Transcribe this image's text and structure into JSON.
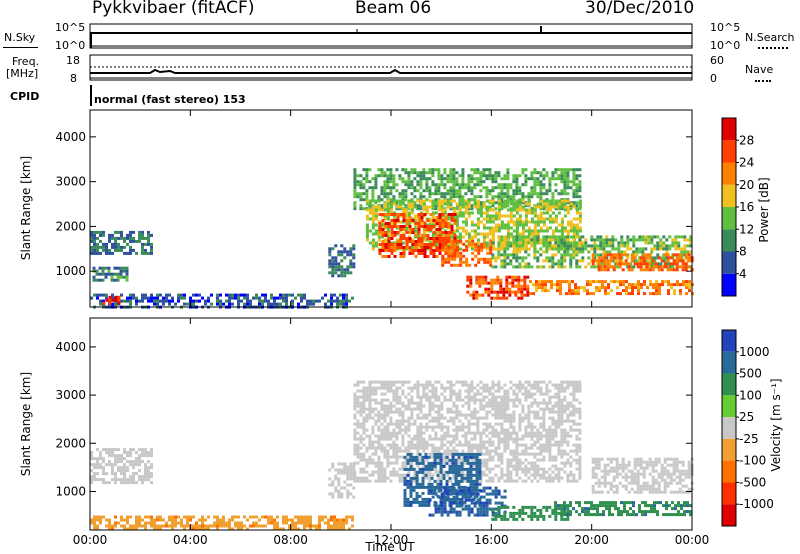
{
  "header": {
    "station": "Pykkvibaer (fitACF)",
    "beam": "Beam 06",
    "date": "30/Dec/2010"
  },
  "nsky_panel": {
    "left_label": "N.Sky",
    "left_ticks": [
      "10^5",
      "10^0"
    ],
    "right_ticks": [
      "10^5",
      "10^0"
    ],
    "right_label": "N.Search"
  },
  "freq_panel": {
    "left_label_1": "Freq.",
    "left_label_2": "[MHz]",
    "left_ticks": [
      "18",
      "8"
    ],
    "right_ticks": [
      "60",
      "0"
    ],
    "right_label": "Nave"
  },
  "cpid": {
    "label": "CPID",
    "value": "normal (fast stereo) 153"
  },
  "colors": {
    "power": [
      "#0000ff",
      "#2f4f9f",
      "#3a8a5a",
      "#5fbf3f",
      "#f0c020",
      "#ff8000",
      "#ff4000",
      "#e00000"
    ],
    "velocity": [
      "#2244bb",
      "#2a6a9a",
      "#2f8f4f",
      "#66cc33",
      "#c8c8c8",
      "#f0a030",
      "#ff7000",
      "#ff3000",
      "#e00000"
    ]
  },
  "chart_data": [
    {
      "type": "heatmap",
      "panel": "power",
      "xlabel": "",
      "ylabel": "Slant Range [km]",
      "x_ticks": [
        "00:00",
        "04:00",
        "08:00",
        "12:00",
        "16:00",
        "20:00",
        "00:00"
      ],
      "xlim_hours": [
        0,
        24
      ],
      "y_ticks": [
        1000,
        2000,
        3000,
        4000
      ],
      "ylim": [
        200,
        4600
      ],
      "colorbar": {
        "label": "Power [dB]",
        "ticks": [
          4,
          8,
          12,
          16,
          20,
          24,
          28
        ],
        "range": [
          0,
          32
        ]
      },
      "regions": [
        {
          "x": [
            0.0,
            10.5
          ],
          "y": [
            200,
            500
          ],
          "value": 6
        },
        {
          "x": [
            0.0,
            2.5
          ],
          "y": [
            1400,
            1900
          ],
          "value": 8
        },
        {
          "x": [
            0.1,
            1.5
          ],
          "y": [
            800,
            1100
          ],
          "value": 9
        },
        {
          "x": [
            0.5,
            1.1
          ],
          "y": [
            300,
            450
          ],
          "value": 28
        },
        {
          "x": [
            9.5,
            10.5
          ],
          "y": [
            900,
            1600
          ],
          "value": 8
        },
        {
          "x": [
            10.5,
            19.5
          ],
          "y": [
            2400,
            3300
          ],
          "value": 12
        },
        {
          "x": [
            11.0,
            19.5
          ],
          "y": [
            1500,
            2600
          ],
          "value": 16
        },
        {
          "x": [
            11.5,
            14.5
          ],
          "y": [
            1300,
            2300
          ],
          "value": 26
        },
        {
          "x": [
            14.0,
            16.0
          ],
          "y": [
            1100,
            1700
          ],
          "value": 24
        },
        {
          "x": [
            15.0,
            17.5
          ],
          "y": [
            400,
            900
          ],
          "value": 26
        },
        {
          "x": [
            16.0,
            24.0
          ],
          "y": [
            1100,
            1800
          ],
          "value": 14
        },
        {
          "x": [
            17.5,
            24.0
          ],
          "y": [
            500,
            800
          ],
          "value": 22
        },
        {
          "x": [
            20.0,
            24.0
          ],
          "y": [
            1000,
            1400
          ],
          "value": 24
        }
      ]
    },
    {
      "type": "heatmap",
      "panel": "velocity",
      "xlabel": "Time UT",
      "ylabel": "Slant Range [km]",
      "x_ticks": [
        "00:00",
        "04:00",
        "08:00",
        "12:00",
        "16:00",
        "20:00",
        "00:00"
      ],
      "xlim_hours": [
        0,
        24
      ],
      "y_ticks": [
        1000,
        2000,
        3000,
        4000
      ],
      "ylim": [
        200,
        4600
      ],
      "colorbar": {
        "label": "Velocity [m s⁻¹]",
        "ticks": [
          "1000",
          "500",
          "100",
          "25",
          "-25",
          "-100",
          "-500",
          "-1000"
        ]
      },
      "regions": [
        {
          "x": [
            0.0,
            2.5
          ],
          "y": [
            1200,
            1900
          ],
          "value": 0
        },
        {
          "x": [
            0.0,
            10.5
          ],
          "y": [
            200,
            500
          ],
          "value": -80
        },
        {
          "x": [
            9.5,
            10.5
          ],
          "y": [
            900,
            1600
          ],
          "value": 0
        },
        {
          "x": [
            10.5,
            19.5
          ],
          "y": [
            1200,
            3300
          ],
          "value": 0
        },
        {
          "x": [
            12.5,
            15.5
          ],
          "y": [
            700,
            1800
          ],
          "value": 600
        },
        {
          "x": [
            13.5,
            16.5
          ],
          "y": [
            500,
            1100
          ],
          "value": 700
        },
        {
          "x": [
            16.0,
            19.0
          ],
          "y": [
            400,
            700
          ],
          "value": 150
        },
        {
          "x": [
            18.5,
            24.0
          ],
          "y": [
            500,
            800
          ],
          "value": 250
        },
        {
          "x": [
            20.0,
            24.0
          ],
          "y": [
            1000,
            1700
          ],
          "value": 0
        }
      ]
    }
  ]
}
